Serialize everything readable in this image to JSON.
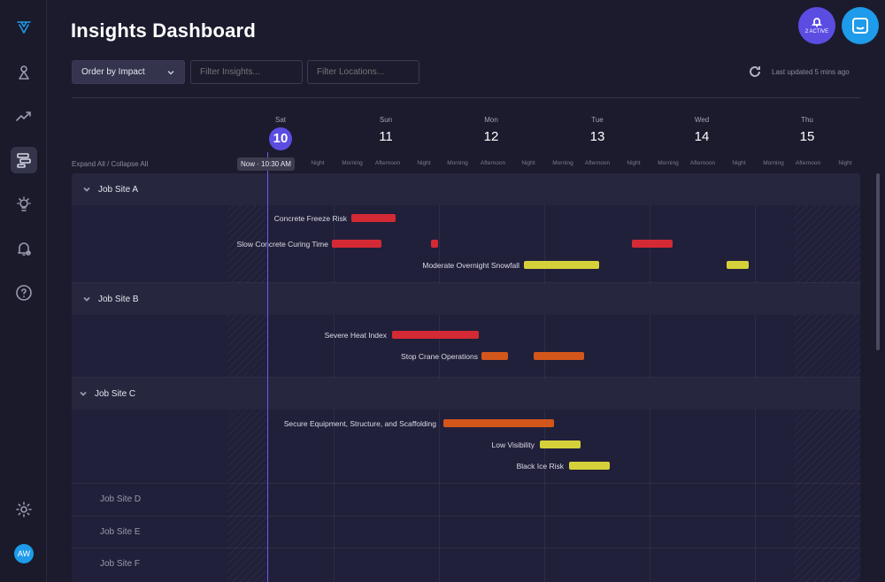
{
  "page": {
    "title": "Insights Dashboard"
  },
  "header": {
    "alerts": {
      "label": "2 ACTIVE",
      "icon": "bell-icon"
    },
    "chat": {
      "icon": "chat-icon"
    }
  },
  "toolbar": {
    "order_select": {
      "value": "Order by Impact"
    },
    "filter_insights": {
      "placeholder": "Filter Insights..."
    },
    "filter_locations": {
      "placeholder": "Filter Locations..."
    },
    "last_updated": "Last updated 5 mins ago"
  },
  "sidebar": {
    "items": [
      {
        "icon": "logo-icon"
      },
      {
        "icon": "map-pin-icon"
      },
      {
        "icon": "trend-chart-icon"
      },
      {
        "icon": "insights-list-icon",
        "active": true
      },
      {
        "icon": "lightbulb-icon"
      },
      {
        "icon": "alert-bell-icon"
      },
      {
        "icon": "help-icon"
      },
      {
        "icon": "settings-icon"
      }
    ],
    "avatar": "AW"
  },
  "timeline": {
    "expand_label": "Expand All / Collapse All",
    "now_label": "Now  ·  10:30 AM",
    "days": [
      {
        "name": "Sat",
        "num": "10",
        "today": true
      },
      {
        "name": "Sun",
        "num": "11"
      },
      {
        "name": "Mon",
        "num": "12"
      },
      {
        "name": "Tue",
        "num": "13"
      },
      {
        "name": "Wed",
        "num": "14"
      },
      {
        "name": "Thu",
        "num": "15"
      }
    ],
    "segments": [
      "Night",
      "Morning",
      "Afternoon",
      "Night",
      "Morning",
      "Afternoon",
      "Night",
      "Morning",
      "Afternoon",
      "Night",
      "Morning",
      "Afternoon",
      "Night",
      "Morning",
      "Afternoon",
      "Night"
    ]
  },
  "colors": {
    "severe": "#d42a35",
    "high": "#d3561a",
    "moderate": "#d6d13a",
    "accent": "#5b4de2",
    "brand": "#1e9bea"
  },
  "sites": [
    {
      "name": "Job Site A",
      "insights": [
        {
          "label": "Concrete Freeze Risk",
          "severity": "severe"
        },
        {
          "label": "Slow Concrete Curing Time",
          "severity": "severe"
        },
        {
          "label": "Moderate Overnight Snowfall",
          "severity": "moderate"
        }
      ]
    },
    {
      "name": "Job Site B",
      "insights": [
        {
          "label": "Severe Heat Index",
          "severity": "severe"
        },
        {
          "label": "Stop Crane Operations",
          "severity": "high"
        }
      ]
    },
    {
      "name": "Job Site C",
      "insights": [
        {
          "label": "Secure Equipment, Structure, and Scaffolding",
          "severity": "high"
        },
        {
          "label": "Low Visibility",
          "severity": "moderate"
        },
        {
          "label": "Black Ice Risk",
          "severity": "moderate"
        }
      ]
    },
    {
      "name": "Job Site D"
    },
    {
      "name": "Job Site E"
    },
    {
      "name": "Job Site F"
    }
  ]
}
